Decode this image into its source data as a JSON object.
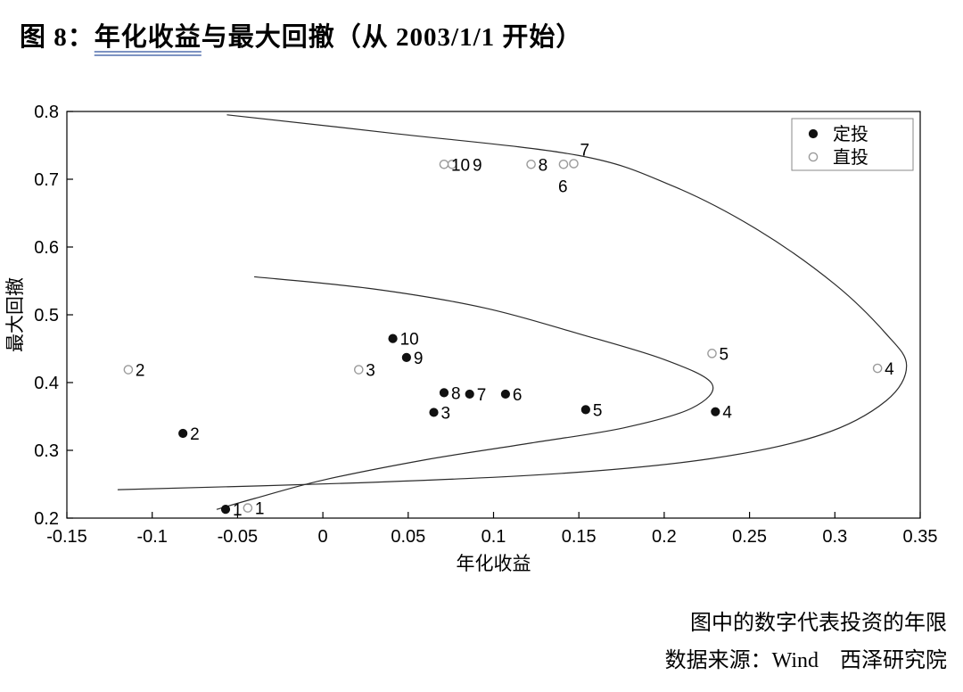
{
  "title": {
    "prefix": "图 8：",
    "underlined": "年化收益",
    "rest": "与最大回撤（从 2003/1/1 开始）"
  },
  "footer": {
    "note1": "图中的数字代表投资的年限",
    "note2": "数据来源：Wind　西泽研究院"
  },
  "chart_data": {
    "type": "scatter",
    "title": "图 8：年化收益与最大回撤（从 2003/1/1 开始）",
    "xlabel": "年化收益",
    "ylabel": "最大回撤",
    "xlim": [
      -0.15,
      0.35
    ],
    "ylim": [
      0.2,
      0.8
    ],
    "xtick_labels": [
      "-0.15",
      "-0.1",
      "-0.05",
      "0",
      "0.05",
      "0.1",
      "0.15",
      "0.2",
      "0.25",
      "0.3",
      "0.35"
    ],
    "ytick_labels": [
      "0.2",
      "0.3",
      "0.4",
      "0.5",
      "0.6",
      "0.7",
      "0.8"
    ],
    "grid": false,
    "annotation": "图中的数字代表投资的年限",
    "colors": {
      "filled_marker": "#111111",
      "filled_label": "#000000",
      "open_marker_stroke": "#9b9b9b",
      "open_label": "#b9b9b9",
      "curve": "#2b2b2b",
      "axis": "#000000"
    },
    "legend": {
      "position": "top-right",
      "items": [
        {
          "label": "定投",
          "marker": "filled"
        },
        {
          "label": "直投",
          "marker": "open"
        }
      ]
    },
    "series": [
      {
        "name": "定投",
        "marker": "filled",
        "points": [
          {
            "label": "1",
            "x": -0.057,
            "y": 0.213
          },
          {
            "label": "2",
            "x": -0.082,
            "y": 0.325
          },
          {
            "label": "3",
            "x": 0.065,
            "y": 0.356
          },
          {
            "label": "4",
            "x": 0.23,
            "y": 0.357
          },
          {
            "label": "5",
            "x": 0.154,
            "y": 0.36
          },
          {
            "label": "6",
            "x": 0.107,
            "y": 0.383
          },
          {
            "label": "7",
            "x": 0.086,
            "y": 0.383
          },
          {
            "label": "8",
            "x": 0.071,
            "y": 0.385
          },
          {
            "label": "9",
            "x": 0.049,
            "y": 0.437
          },
          {
            "label": "10",
            "x": 0.041,
            "y": 0.465
          }
        ]
      },
      {
        "name": "直投",
        "marker": "open",
        "points": [
          {
            "label": "1",
            "x": -0.044,
            "y": 0.215
          },
          {
            "label": "2",
            "x": -0.114,
            "y": 0.419
          },
          {
            "label": "3",
            "x": 0.021,
            "y": 0.419
          },
          {
            "label": "4",
            "x": 0.325,
            "y": 0.421
          },
          {
            "label": "5",
            "x": 0.228,
            "y": 0.443
          },
          {
            "label": "6",
            "x": 0.141,
            "y": 0.722,
            "label_dx": -6,
            "label_dy": 31
          },
          {
            "label": "7",
            "x": 0.147,
            "y": 0.723,
            "label_dx": 7,
            "label_dy": -9
          },
          {
            "label": "8",
            "x": 0.122,
            "y": 0.722
          },
          {
            "label": "9",
            "x": 0.0757,
            "y": 0.722,
            "label_dx": 23
          },
          {
            "label": "10",
            "x": 0.071,
            "y": 0.722
          }
        ]
      }
    ],
    "curves": [
      {
        "name": "outer-envelope",
        "points": [
          [
            -0.056,
            0.795
          ],
          [
            0.04,
            0.768
          ],
          [
            0.15,
            0.735
          ],
          [
            0.205,
            0.69
          ],
          [
            0.255,
            0.625
          ],
          [
            0.3,
            0.545
          ],
          [
            0.33,
            0.472
          ],
          [
            0.342,
            0.425
          ],
          [
            0.33,
            0.373
          ],
          [
            0.292,
            0.323
          ],
          [
            0.228,
            0.288
          ],
          [
            0.14,
            0.266
          ],
          [
            0.02,
            0.252
          ],
          [
            -0.12,
            0.242
          ]
        ]
      },
      {
        "name": "inner-envelope",
        "points": [
          [
            -0.04,
            0.556
          ],
          [
            0.03,
            0.538
          ],
          [
            0.095,
            0.51
          ],
          [
            0.15,
            0.472
          ],
          [
            0.2,
            0.434
          ],
          [
            0.228,
            0.398
          ],
          [
            0.216,
            0.362
          ],
          [
            0.176,
            0.333
          ],
          [
            0.12,
            0.31
          ],
          [
            0.06,
            0.286
          ],
          [
            0.0,
            0.256
          ],
          [
            -0.04,
            0.229
          ],
          [
            -0.062,
            0.213
          ]
        ]
      }
    ]
  }
}
